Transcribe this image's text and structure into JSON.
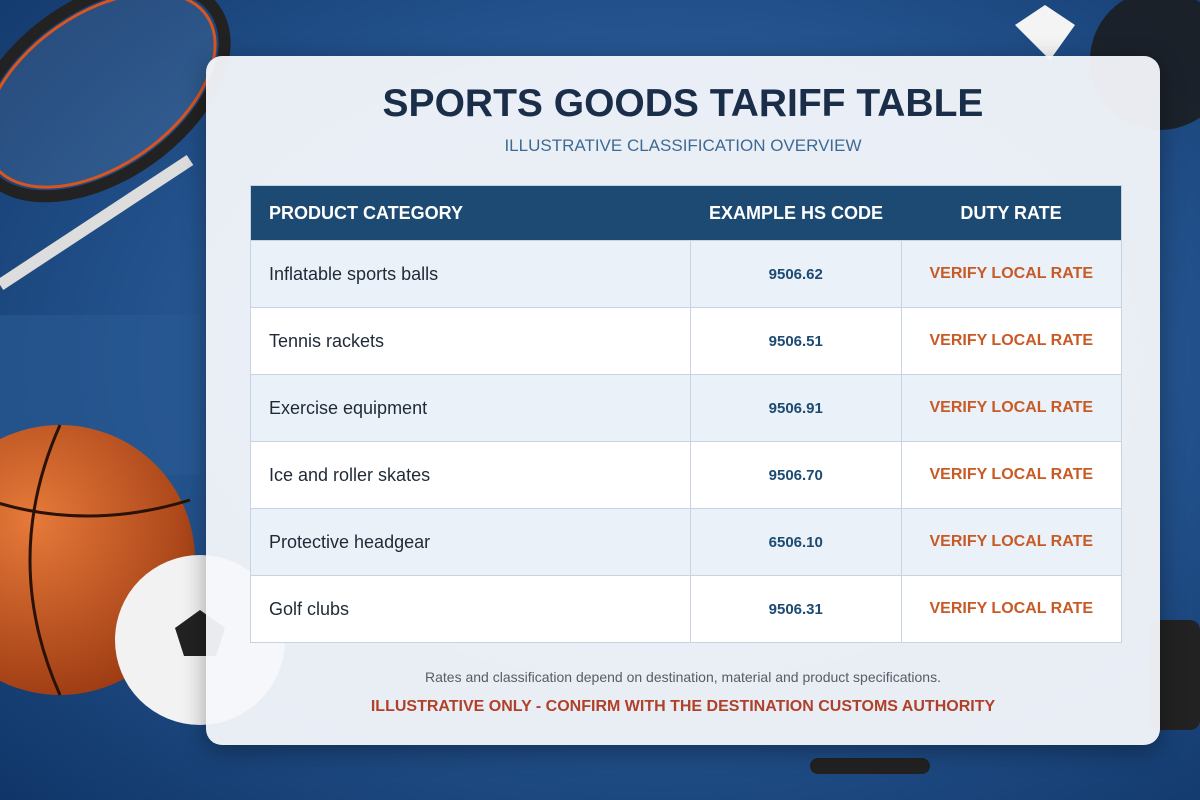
{
  "header": {
    "title": "SPORTS GOODS TARIFF TABLE",
    "subtitle": "ILLUSTRATIVE CLASSIFICATION OVERVIEW"
  },
  "table": {
    "columns": [
      "PRODUCT CATEGORY",
      "EXAMPLE HS CODE",
      "DUTY RATE"
    ],
    "rows": [
      [
        "Inflatable sports balls",
        "9506.62",
        "VERIFY LOCAL RATE"
      ],
      [
        "Tennis rackets",
        "9506.51",
        "VERIFY LOCAL RATE"
      ],
      [
        "Exercise equipment",
        "9506.91",
        "VERIFY LOCAL RATE"
      ],
      [
        "Ice and roller skates",
        "9506.70",
        "VERIFY LOCAL RATE"
      ],
      [
        "Protective headgear",
        "6506.10",
        "VERIFY LOCAL RATE"
      ],
      [
        "Golf clubs",
        "9506.31",
        "VERIFY LOCAL RATE"
      ]
    ]
  },
  "footer": {
    "note": "Rates and classification depend on destination, material and product specifications.",
    "disclaimer": "ILLUSTRATIVE ONLY - CONFIRM WITH THE DESTINATION CUSTOMS AUTHORITY"
  }
}
